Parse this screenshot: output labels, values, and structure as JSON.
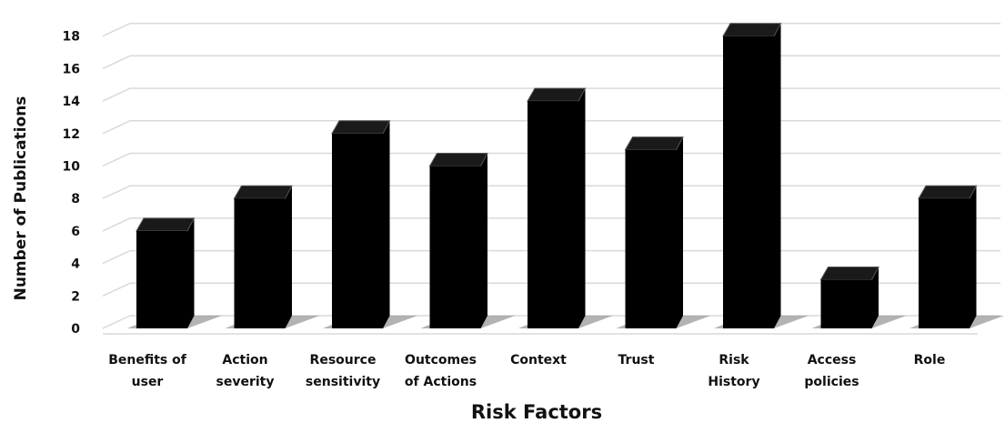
{
  "chart_data": {
    "type": "bar",
    "title": "",
    "xlabel": "Risk Factors",
    "ylabel": "Number of Publications",
    "categories": [
      [
        "Benefits of",
        "user"
      ],
      [
        "Action",
        "severity"
      ],
      [
        "Resource",
        "sensitivity"
      ],
      [
        "Outcomes",
        "of Actions"
      ],
      [
        "Context"
      ],
      [
        "Trust"
      ],
      [
        "Risk",
        "History"
      ],
      [
        "Access",
        "policies"
      ],
      [
        "Role"
      ]
    ],
    "values": [
      6,
      8,
      12,
      10,
      14,
      11,
      18,
      3,
      8
    ],
    "ylim": [
      0,
      18
    ],
    "yticks": [
      0,
      2,
      4,
      6,
      8,
      10,
      12,
      14,
      16,
      18
    ],
    "grid": true,
    "legend": "none",
    "bar_color": "#000000",
    "shadow_color": "#9a9a9a",
    "grid_color": "#d9d9d9"
  }
}
